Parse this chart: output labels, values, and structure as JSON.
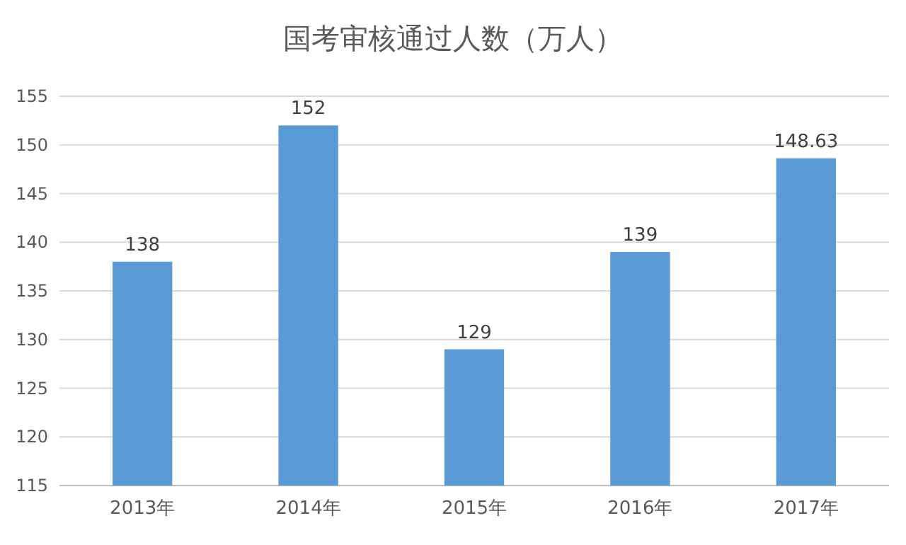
{
  "chart_data": {
    "type": "bar",
    "title": "国考审核通过人数（万人）",
    "categories": [
      "2013年",
      "2014年",
      "2015年",
      "2016年",
      "2017年"
    ],
    "values": [
      138,
      152,
      129,
      139,
      148.63
    ],
    "color": "#5b9bd5",
    "ylim": [
      115,
      155
    ],
    "yticks": [
      115,
      120,
      125,
      130,
      135,
      140,
      145,
      150,
      155
    ],
    "grid": "y",
    "data_labels": true
  }
}
